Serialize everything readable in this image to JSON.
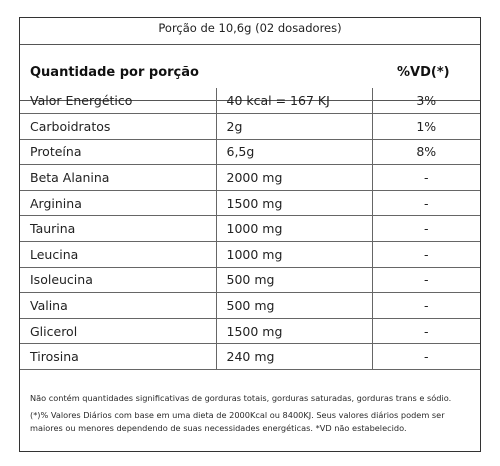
{
  "portion": "Porção de 10,6g (02 dosadores)",
  "header": {
    "title": "Quantidade por porção",
    "vd": "%VD(*)"
  },
  "rows": [
    {
      "name": "Valor Energético",
      "amount": "40 kcal = 167 KJ",
      "vd": "3%"
    },
    {
      "name": "Carboidratos",
      "amount": "2g",
      "vd": "1%"
    },
    {
      "name": "Proteína",
      "amount": "6,5g",
      "vd": "8%"
    },
    {
      "name": "Beta Alanina",
      "amount": "2000 mg",
      "vd": "-"
    },
    {
      "name": "Arginina",
      "amount": "1500 mg",
      "vd": "-"
    },
    {
      "name": "Taurina",
      "amount": "1000 mg",
      "vd": "-"
    },
    {
      "name": "Leucina",
      "amount": "1000 mg",
      "vd": "-"
    },
    {
      "name": "Isoleucina",
      "amount": "500 mg",
      "vd": "-"
    },
    {
      "name": "Valina",
      "amount": "500 mg",
      "vd": "-"
    },
    {
      "name": "Glicerol",
      "amount": "1500 mg",
      "vd": "-"
    },
    {
      "name": "Tirosina",
      "amount": "240 mg",
      "vd": "-"
    }
  ],
  "notes": {
    "line1": "Não contém quantidades significativas de gorduras totais, gorduras saturadas, gorduras trans e sódio.",
    "line2": "(*)% Valores Diários com base em uma dieta de 2000Kcal ou 8400KJ. Seus valores diários podem ser maiores ou menores dependendo de suas necessidades energéticas. *VD não estabelecido."
  }
}
